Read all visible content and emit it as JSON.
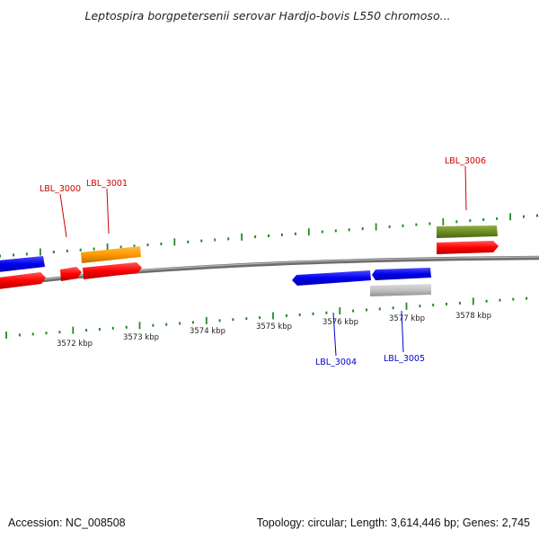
{
  "title": "Leptospira borgpetersenii serovar Hardjo-bovis L550 chromoso...",
  "footer": {
    "accession": "Accession: NC_008508",
    "summary": "Topology: circular; Length: 3,614,446 bp; Genes: 2,745"
  },
  "kbp_labels": [
    "3572 kbp",
    "3573 kbp",
    "3574 kbp",
    "3575 kbp",
    "3576 kbp",
    "3577 kbp",
    "3578 kbp"
  ],
  "gene_labels": {
    "top": [
      "LBL_3000",
      "LBL_3001",
      "LBL_3006"
    ],
    "bottom": [
      "LBL_3004",
      "LBL_3005"
    ]
  },
  "colors": {
    "forward_cds": "#ff0000",
    "forward_feature_blue": "#0000ee",
    "reverse_cds": "#0000ee",
    "orange_feature": "#ff9900",
    "olive_feature": "#6b8e23",
    "grey_feature": "#c0c0c0",
    "backbone": "#808080",
    "ticks": "#228b22",
    "top_label": "#cc0000",
    "bottom_label": "#0000cc"
  }
}
